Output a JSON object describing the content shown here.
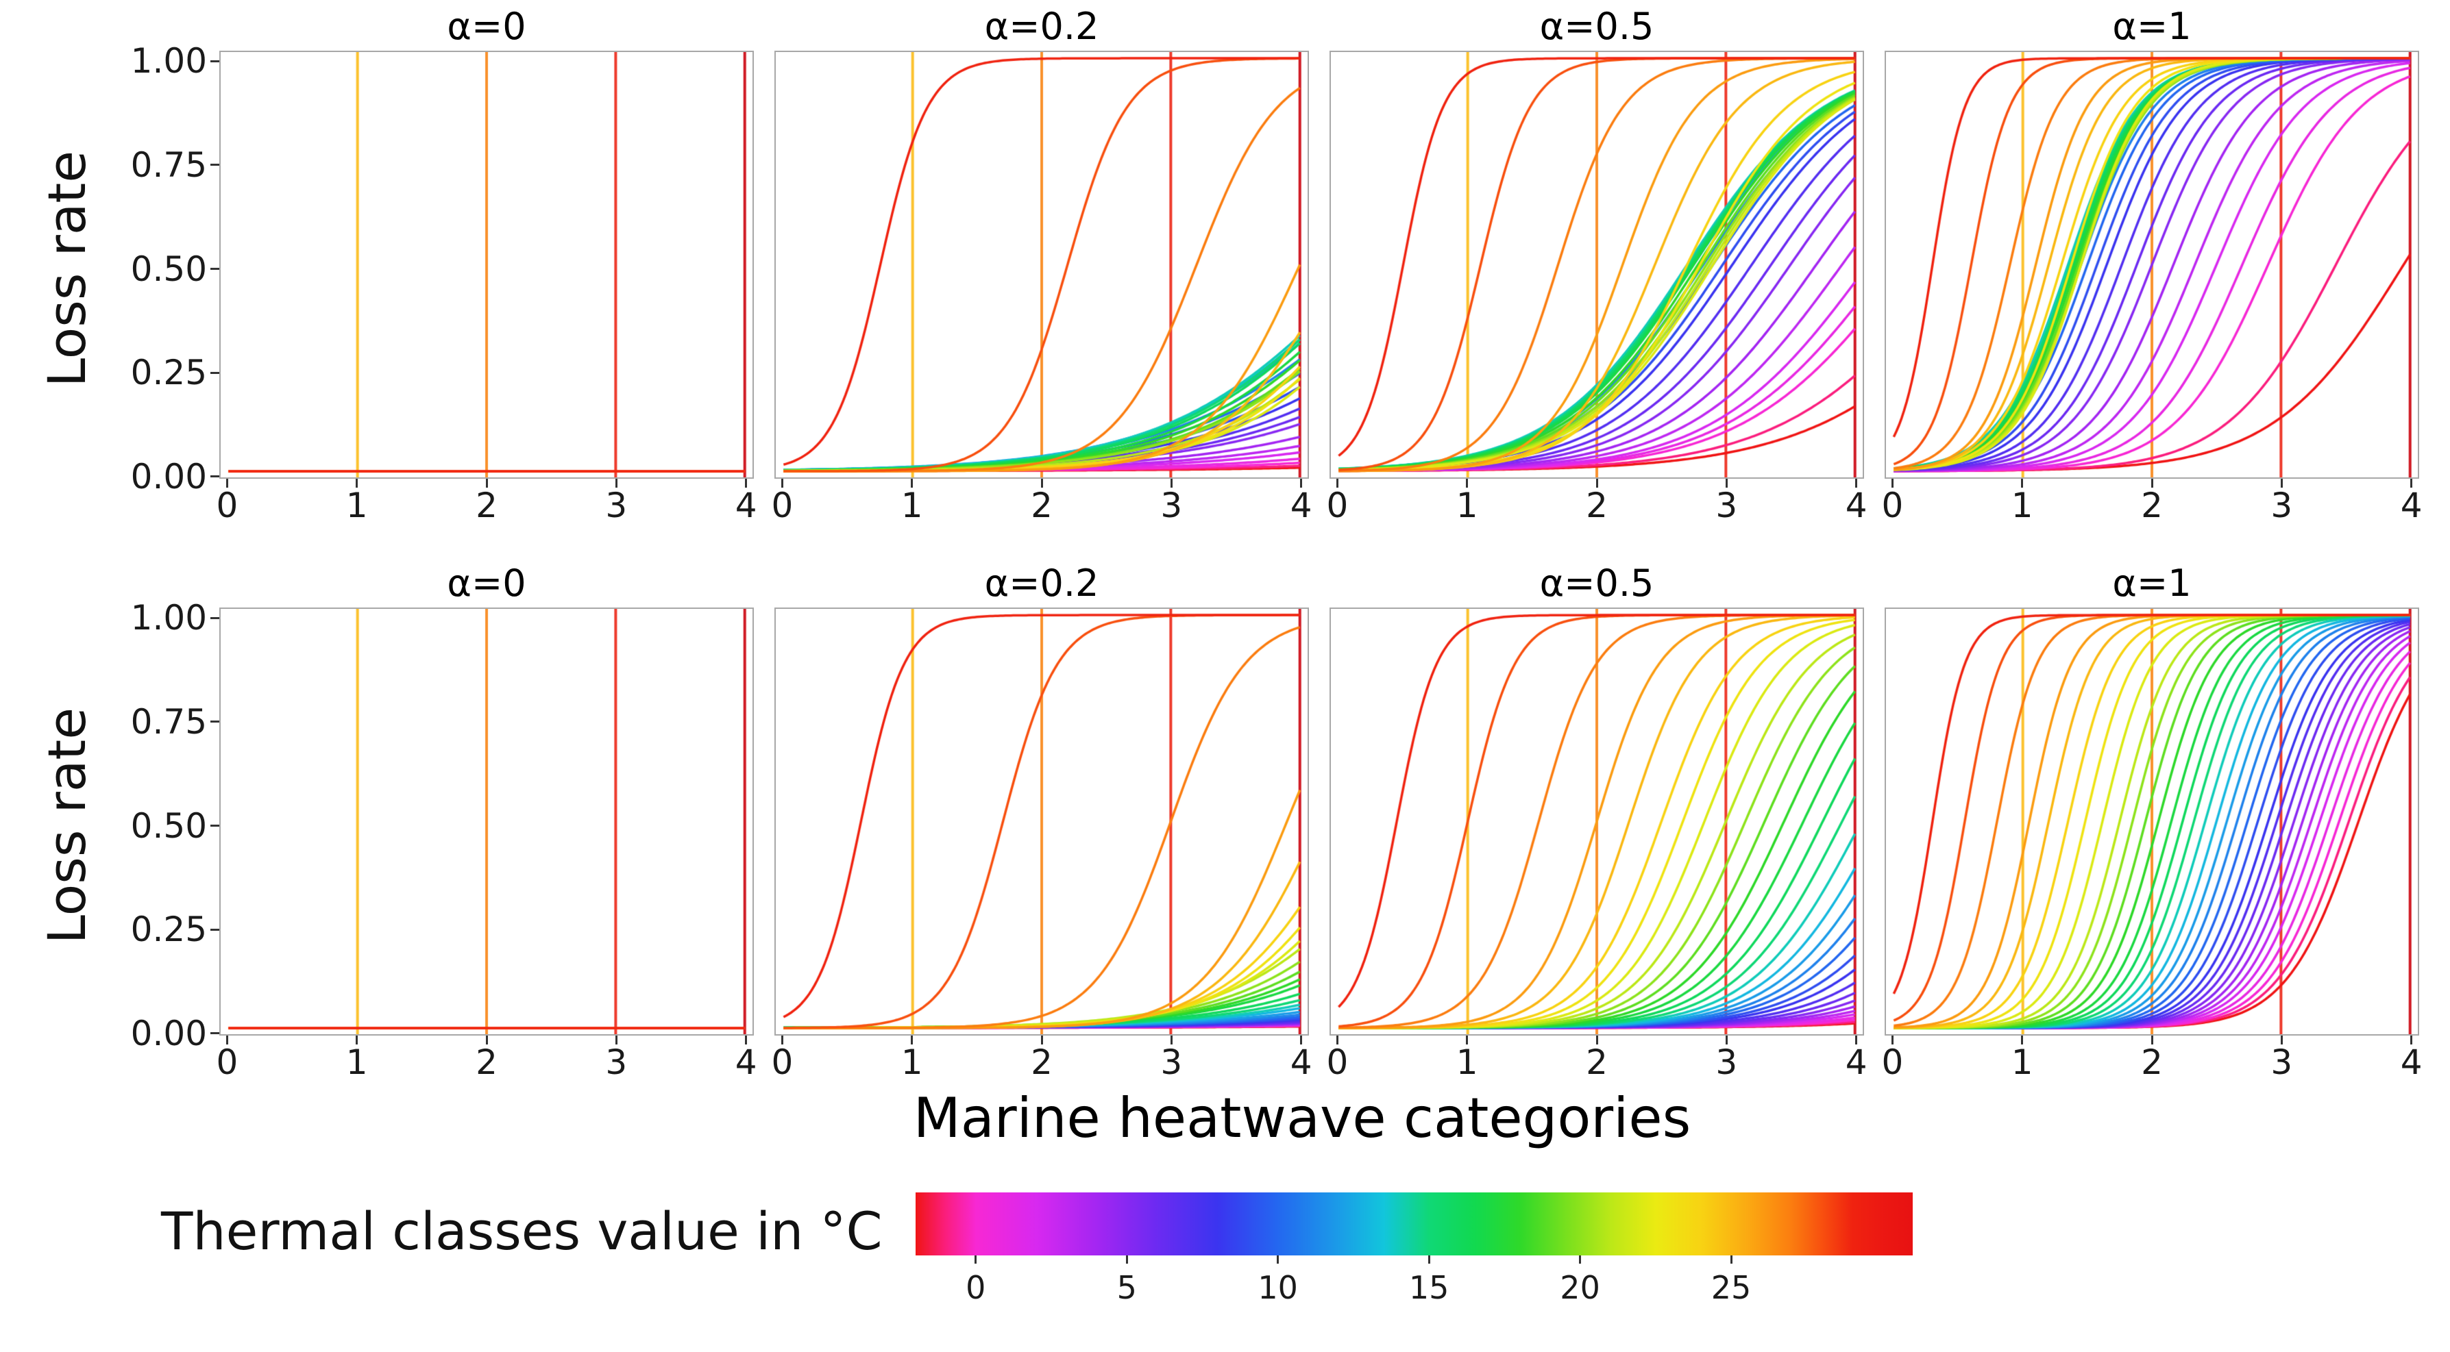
{
  "chart_data": {
    "type": "line",
    "description": "Logistic loss-rate response curves per thermal class, across sensitivity parameter alpha; 2 rows x 4 columns of panels",
    "panel_titles": [
      "α=0",
      "α=0.2",
      "α=0.5",
      "α=1"
    ],
    "alphas": [
      0,
      0.2,
      0.5,
      1
    ],
    "axes": {
      "x_label": "Marine heatwave categories",
      "y_label": "Loss rate",
      "x_ticks": [
        0,
        1,
        2,
        3,
        4
      ],
      "y_ticks": [
        {
          "label": "1.00",
          "value": 1.0
        },
        {
          "label": "0.75",
          "value": 0.75
        },
        {
          "label": "0.50",
          "value": 0.5
        },
        {
          "label": "0.25",
          "value": 0.25
        },
        {
          "label": "0.00",
          "value": 0.0
        }
      ],
      "x_view": [
        -0.06,
        4.06
      ],
      "y_view": [
        -0.015,
        1.015
      ]
    },
    "curve_model": "loss_rate(x) = 1 / (1 + exp(-k*(x - x0))); x0 and k piecewise-linear in thermal class t; flat panels are 0 everywhere",
    "thermal_classes": {
      "min": -2,
      "max": 29,
      "step": 1
    },
    "vlines": [
      {
        "x": 1,
        "color": "#fcc22d"
      },
      {
        "x": 2,
        "color": "#f9912c"
      },
      {
        "x": 3,
        "color": "#ee3b2c"
      },
      {
        "x": 4,
        "color": "#cf1620"
      }
    ],
    "colormap_stops": [
      [
        -2,
        "#f01515"
      ],
      [
        -1,
        "#fb1e7e"
      ],
      [
        0,
        "#f728d4"
      ],
      [
        2,
        "#d829f0"
      ],
      [
        4,
        "#a426f2"
      ],
      [
        6,
        "#6c2bf2"
      ],
      [
        8,
        "#3b35f0"
      ],
      [
        10,
        "#2468f0"
      ],
      [
        12,
        "#1b9ce8"
      ],
      [
        13.5,
        "#12c6dc"
      ],
      [
        15,
        "#10d876"
      ],
      [
        16.5,
        "#12d950"
      ],
      [
        18,
        "#2fd92a"
      ],
      [
        19.5,
        "#77e01e"
      ],
      [
        21,
        "#bce818"
      ],
      [
        22.5,
        "#ebeb12"
      ],
      [
        24,
        "#f8d313"
      ],
      [
        25.5,
        "#fbab12"
      ],
      [
        27,
        "#fb7d10"
      ],
      [
        28,
        "#f8500f"
      ],
      [
        29,
        "#f02310"
      ],
      [
        30,
        "#ec1813"
      ],
      [
        31,
        "#e81212"
      ]
    ],
    "colorbar": {
      "label": "Thermal classes value in °C",
      "ticks": [
        0,
        5,
        10,
        15,
        20,
        25
      ],
      "range": [
        -2,
        31
      ]
    },
    "rows": [
      {
        "name": "top",
        "panels": [
          {
            "alpha": 0,
            "flat": true
          },
          {
            "alpha": 0.2,
            "flat": false,
            "x0": [
              [
                -2,
                9.6
              ],
              [
                0,
                8.3
              ],
              [
                2,
                7.2
              ],
              [
                5,
                6.0
              ],
              [
                8,
                5.4
              ],
              [
                10,
                5.0
              ],
              [
                12,
                4.65
              ],
              [
                14,
                4.55
              ],
              [
                16,
                4.6
              ],
              [
                19,
                4.8
              ],
              [
                22,
                4.85
              ],
              [
                24,
                4.6
              ],
              [
                26,
                4.0
              ],
              [
                27,
                3.2
              ],
              [
                28,
                2.2
              ],
              [
                29,
                0.75
              ]
            ],
            "k": [
              [
                -2,
                0.85
              ],
              [
                0,
                0.9
              ],
              [
                8,
                1.1
              ],
              [
                14,
                1.3
              ],
              [
                20,
                1.4
              ],
              [
                24,
                1.8
              ],
              [
                27,
                3.2
              ],
              [
                29,
                5.5
              ]
            ]
          },
          {
            "alpha": 0.5,
            "flat": false,
            "x0": [
              [
                -2,
                5.2
              ],
              [
                0,
                4.4
              ],
              [
                2,
                4.1
              ],
              [
                5,
                3.5
              ],
              [
                8,
                3.05
              ],
              [
                10,
                2.9
              ],
              [
                12,
                2.75
              ],
              [
                14,
                2.7
              ],
              [
                17,
                2.75
              ],
              [
                20,
                2.85
              ],
              [
                22,
                2.9
              ],
              [
                24,
                2.7
              ],
              [
                26,
                2.2
              ],
              [
                27,
                1.7
              ],
              [
                28,
                1.1
              ],
              [
                29,
                0.5
              ]
            ],
            "k": [
              [
                -2,
                1.4
              ],
              [
                0,
                1.6
              ],
              [
                5,
                1.8
              ],
              [
                8,
                1.85
              ],
              [
                14,
                1.9
              ],
              [
                22,
                2.0
              ],
              [
                24,
                2.6
              ],
              [
                27,
                4.0
              ],
              [
                29,
                6.5
              ]
            ]
          },
          {
            "alpha": 1,
            "flat": false,
            "x0": [
              [
                -2,
                3.95
              ],
              [
                0,
                2.9
              ],
              [
                2,
                2.5
              ],
              [
                5,
                2.0
              ],
              [
                8,
                1.65
              ],
              [
                10,
                1.5
              ],
              [
                12,
                1.4
              ],
              [
                14,
                1.35
              ],
              [
                17,
                1.4
              ],
              [
                20,
                1.45
              ],
              [
                22,
                1.45
              ],
              [
                24,
                1.3
              ],
              [
                26,
                1.1
              ],
              [
                27,
                0.9
              ],
              [
                28,
                0.6
              ],
              [
                29,
                0.3
              ]
            ],
            "k": [
              [
                -2,
                2.0
              ],
              [
                0,
                2.8
              ],
              [
                5,
                3.2
              ],
              [
                8,
                3.4
              ],
              [
                14,
                3.7
              ],
              [
                20,
                3.8
              ],
              [
                24,
                4.2
              ],
              [
                27,
                5.5
              ],
              [
                29,
                8
              ]
            ]
          }
        ]
      },
      {
        "name": "bottom",
        "panels": [
          {
            "alpha": 0,
            "flat": true
          },
          {
            "alpha": 0.2,
            "flat": false,
            "x0": [
              [
                -2,
                10.6
              ],
              [
                0,
                9.8
              ],
              [
                8,
                7.9
              ],
              [
                13,
                6.6
              ],
              [
                17,
                5.6
              ],
              [
                21,
                4.9
              ],
              [
                24,
                4.4
              ],
              [
                26,
                3.9
              ],
              [
                27,
                3.0
              ],
              [
                28,
                1.7
              ],
              [
                29,
                0.6
              ]
            ],
            "k": [
              [
                -2,
                0.85
              ],
              [
                8,
                1.0
              ],
              [
                13,
                1.15
              ],
              [
                17,
                1.35
              ],
              [
                21,
                1.6
              ],
              [
                24,
                2.2
              ],
              [
                27,
                3.5
              ],
              [
                29,
                6
              ]
            ]
          },
          {
            "alpha": 0.5,
            "flat": false,
            "x0": [
              [
                -2,
                6.8
              ],
              [
                0,
                6.3
              ],
              [
                2,
                5.9
              ],
              [
                5,
                5.4
              ],
              [
                8,
                4.9
              ],
              [
                10,
                4.6
              ],
              [
                13,
                4.2
              ],
              [
                15,
                3.9
              ],
              [
                17,
                3.6
              ],
              [
                19,
                3.3
              ],
              [
                21,
                3.0
              ],
              [
                24,
                2.5
              ],
              [
                26,
                2.0
              ],
              [
                27,
                1.55
              ],
              [
                28,
                1.0
              ],
              [
                29,
                0.45
              ]
            ],
            "k": [
              [
                -2,
                1.6
              ],
              [
                0,
                1.7
              ],
              [
                8,
                2.0
              ],
              [
                13,
                2.3
              ],
              [
                17,
                2.6
              ],
              [
                21,
                3.0
              ],
              [
                24,
                3.5
              ],
              [
                27,
                4.5
              ],
              [
                29,
                6.5
              ]
            ]
          },
          {
            "alpha": 1,
            "flat": false,
            "x0": [
              [
                -2,
                3.6
              ],
              [
                0,
                3.45
              ],
              [
                2,
                3.3
              ],
              [
                5,
                3.1
              ],
              [
                8,
                2.9
              ],
              [
                13,
                2.5
              ],
              [
                17,
                2.15
              ],
              [
                21,
                1.75
              ],
              [
                24,
                1.35
              ],
              [
                26,
                1.05
              ],
              [
                27,
                0.8
              ],
              [
                28,
                0.55
              ],
              [
                29,
                0.3
              ]
            ],
            "k": [
              [
                -2,
                3.6
              ],
              [
                0,
                3.7
              ],
              [
                8,
                4.0
              ],
              [
                13,
                4.3
              ],
              [
                17,
                4.6
              ],
              [
                21,
                5.0
              ],
              [
                24,
                5.5
              ],
              [
                27,
                6.5
              ],
              [
                29,
                8
              ]
            ]
          }
        ]
      }
    ]
  }
}
